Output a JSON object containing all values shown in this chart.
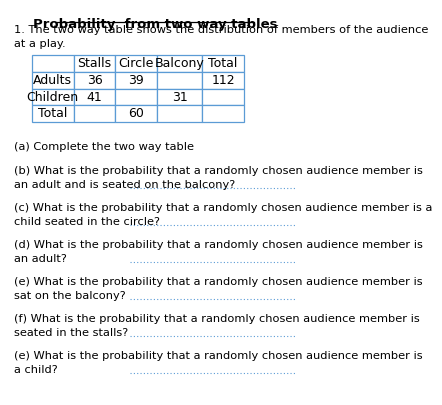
{
  "title": "Probability  from two way tables",
  "intro": "1. The two way table shows the distribution of members of the audience\nat a play.",
  "table_headers": [
    "",
    "Stalls",
    "Circle",
    "Balcony",
    "Total"
  ],
  "table_rows": [
    [
      "Adults",
      "36",
      "39",
      "",
      "112"
    ],
    [
      "Children",
      "41",
      "",
      "31",
      ""
    ],
    [
      "Total",
      "",
      "60",
      "",
      ""
    ]
  ],
  "questions": [
    "(a) Complete the two way table",
    "(b) What is the probability that a randomly chosen audience member is\nan adult and is seated on the balcony?",
    "(c) What is the probability that a randomly chosen audience member is a\nchild seated in the circle?",
    "(d) What is the probability that a randomly chosen audience member is\nan adult?",
    "(e) What is the probability that a randomly chosen audience member is\nsat on the balcony?",
    "(f) What is the probability that a randomly chosen audience member is\nseated in the stalls?",
    "(e) What is the probability that a randomly chosen audience member is\na child?"
  ],
  "bg_color": "#ffffff",
  "text_color": "#000000",
  "table_border_color": "#5b9bd5",
  "dotted_line_color": "#5b9bd5",
  "title_fontsize": 9.5,
  "body_fontsize": 8.2,
  "table_fontsize": 9
}
